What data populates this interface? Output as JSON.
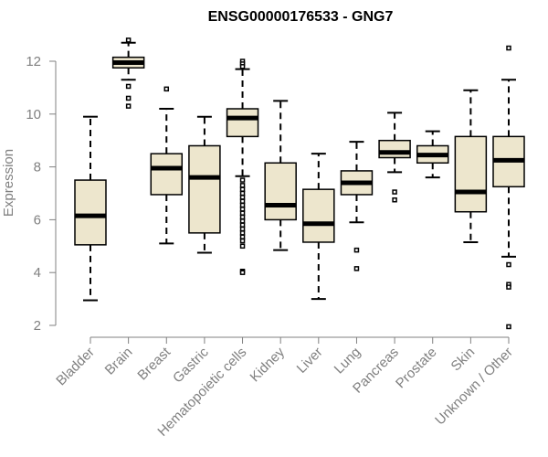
{
  "chart_data": {
    "type": "boxplot",
    "title": "ENSG00000176533 - GNG7",
    "xlabel": "",
    "ylabel": "Expression",
    "ylim": [
      1.95,
      12.9
    ],
    "yticks": [
      2,
      4,
      6,
      8,
      10,
      12
    ],
    "colors": {
      "box_fill": "#ede6cd",
      "box_stroke": "#000000",
      "axis": "#808080",
      "label": "#808080"
    },
    "categories": [
      "Bladder",
      "Brain",
      "Breast",
      "Gastric",
      "Hematopoietic cells",
      "Kidney",
      "Liver",
      "Lung",
      "Pancreas",
      "Prostate",
      "Skin",
      "Unknown / Other"
    ],
    "boxes": [
      {
        "name": "Bladder",
        "whisker_low": 2.95,
        "q1": 5.05,
        "median": 6.15,
        "q3": 7.5,
        "whisker_high": 9.9,
        "outliers": []
      },
      {
        "name": "Brain",
        "whisker_low": 11.3,
        "q1": 11.75,
        "median": 11.95,
        "q3": 12.15,
        "whisker_high": 12.7,
        "outliers": [
          12.8,
          11.05,
          10.6,
          10.3
        ]
      },
      {
        "name": "Breast",
        "whisker_low": 5.1,
        "q1": 6.95,
        "median": 7.95,
        "q3": 8.5,
        "whisker_high": 10.2,
        "outliers": [
          10.95
        ]
      },
      {
        "name": "Gastric",
        "whisker_low": 4.75,
        "q1": 5.5,
        "median": 7.6,
        "q3": 8.8,
        "whisker_high": 9.9,
        "outliers": []
      },
      {
        "name": "Hematopoietic cells",
        "whisker_low": 7.65,
        "q1": 9.15,
        "median": 9.85,
        "q3": 10.2,
        "whisker_high": 11.7,
        "outliers": [
          12.0,
          11.9,
          11.8,
          7.5,
          7.3,
          7.15,
          7.0,
          6.85,
          6.7,
          6.55,
          6.4,
          6.25,
          6.1,
          5.95,
          5.8,
          5.65,
          5.5,
          5.35,
          5.2,
          5.0,
          4.05,
          4.0
        ]
      },
      {
        "name": "Kidney",
        "whisker_low": 4.85,
        "q1": 6.0,
        "median": 6.55,
        "q3": 8.15,
        "whisker_high": 10.5,
        "outliers": []
      },
      {
        "name": "Liver",
        "whisker_low": 3.0,
        "q1": 5.15,
        "median": 5.85,
        "q3": 7.15,
        "whisker_high": 8.5,
        "outliers": []
      },
      {
        "name": "Lung",
        "whisker_low": 5.9,
        "q1": 6.95,
        "median": 7.4,
        "q3": 7.85,
        "whisker_high": 8.95,
        "outliers": [
          4.85,
          4.15
        ]
      },
      {
        "name": "Pancreas",
        "whisker_low": 7.8,
        "q1": 8.35,
        "median": 8.55,
        "q3": 9.0,
        "whisker_high": 10.05,
        "outliers": [
          7.05,
          6.75
        ]
      },
      {
        "name": "Prostate",
        "whisker_low": 7.6,
        "q1": 8.15,
        "median": 8.45,
        "q3": 8.8,
        "whisker_high": 9.35,
        "outliers": []
      },
      {
        "name": "Skin",
        "whisker_low": 5.15,
        "q1": 6.3,
        "median": 7.05,
        "q3": 9.15,
        "whisker_high": 10.9,
        "outliers": []
      },
      {
        "name": "Unknown / Other",
        "whisker_low": 4.6,
        "q1": 7.25,
        "median": 8.25,
        "q3": 9.15,
        "whisker_high": 11.3,
        "outliers": [
          12.5,
          4.3,
          3.55,
          3.45,
          1.95
        ]
      }
    ]
  }
}
